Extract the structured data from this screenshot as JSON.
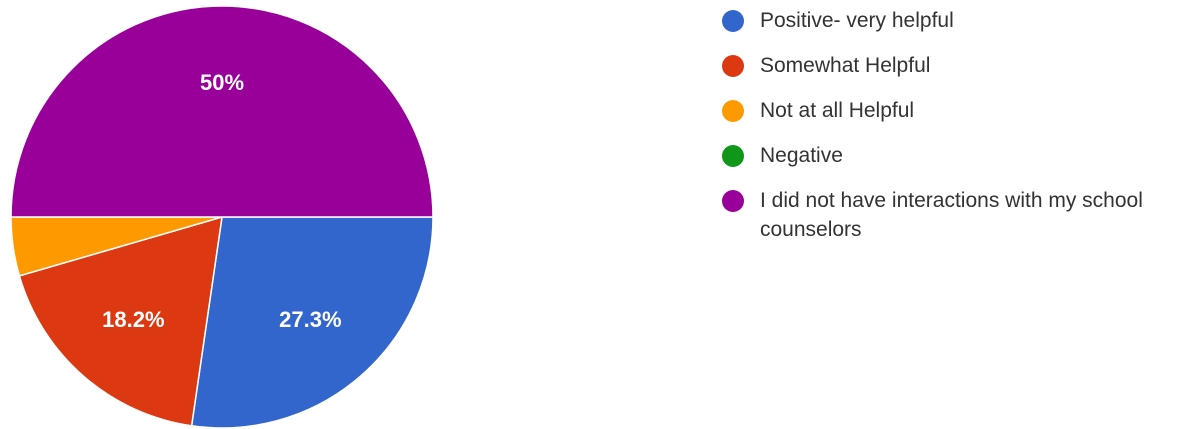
{
  "chart_data": {
    "type": "pie",
    "slices": [
      {
        "label": "Positive- very helpful",
        "value": 27.3,
        "color": "#3366cc",
        "data_label": "27.3%"
      },
      {
        "label": "Somewhat Helpful",
        "value": 18.2,
        "color": "#dc3912",
        "data_label": "18.2%"
      },
      {
        "label": "Not at all Helpful",
        "value": 4.5,
        "color": "#ff9900",
        "data_label": ""
      },
      {
        "label": "Negative",
        "value": 0,
        "color": "#109618",
        "data_label": ""
      },
      {
        "label": "I did not have interactions with my school counselors",
        "value": 50,
        "color": "#990099",
        "data_label": "50%"
      }
    ],
    "legend_position": "right"
  }
}
